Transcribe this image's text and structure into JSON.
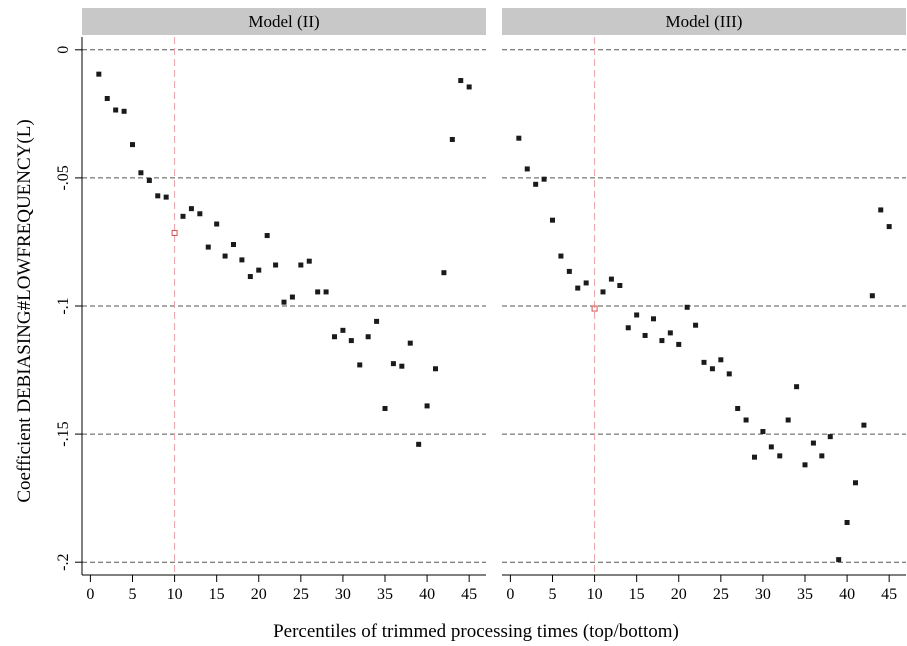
{
  "chart_data": {
    "type": "scatter",
    "ylabel": "Coefficient DEBIASING#LOWFREQUENCY(L)",
    "xlabel": "Percentiles of trimmed processing times (top/bottom)",
    "xlim": [
      -1,
      47
    ],
    "ylim": [
      -0.205,
      0.005
    ],
    "xticks": [
      0,
      5,
      10,
      15,
      20,
      25,
      30,
      35,
      40,
      45
    ],
    "yticks": [
      0,
      -0.05,
      -0.1,
      -0.15,
      -0.2
    ],
    "ytick_labels": [
      "0",
      "-.05",
      "-.1",
      "-.15",
      "-.2"
    ],
    "reference_x": 10,
    "grid": "dashed horizontal at y ticks",
    "colors": {
      "point": "#1a1a1a",
      "highlight": "#d9534f",
      "reference_line": "#e8a0a8",
      "strip": "#c8c8c8",
      "grid": "#555555"
    },
    "panels": [
      {
        "title": "Model (II)",
        "x": [
          1,
          2,
          3,
          4,
          5,
          6,
          7,
          8,
          9,
          10,
          11,
          12,
          13,
          14,
          15,
          16,
          17,
          18,
          19,
          20,
          21,
          22,
          23,
          24,
          25,
          26,
          27,
          28,
          29,
          30,
          31,
          32,
          33,
          34,
          35,
          36,
          37,
          38,
          39,
          40,
          41,
          42,
          43,
          44,
          45
        ],
        "y": [
          -0.0095,
          -0.019,
          -0.0235,
          -0.024,
          -0.037,
          -0.048,
          -0.051,
          -0.057,
          -0.0575,
          -0.0715,
          -0.065,
          -0.062,
          -0.064,
          -0.077,
          -0.068,
          -0.0805,
          -0.076,
          -0.082,
          -0.0885,
          -0.086,
          -0.0725,
          -0.084,
          -0.0985,
          -0.0965,
          -0.084,
          -0.0825,
          -0.0945,
          -0.0945,
          -0.112,
          -0.1095,
          -0.1135,
          -0.123,
          -0.112,
          -0.106,
          -0.14,
          -0.1225,
          -0.1235,
          -0.1145,
          -0.154,
          -0.139,
          -0.1245,
          -0.087,
          -0.035,
          -0.012,
          -0.0145
        ]
      },
      {
        "title": "Model (III)",
        "x": [
          1,
          2,
          3,
          4,
          5,
          6,
          7,
          8,
          9,
          10,
          11,
          12,
          13,
          14,
          15,
          16,
          17,
          18,
          19,
          20,
          21,
          22,
          23,
          24,
          25,
          26,
          27,
          28,
          29,
          30,
          31,
          32,
          33,
          34,
          35,
          36,
          37,
          38,
          39,
          40,
          41,
          42,
          43,
          44,
          45
        ],
        "y": [
          -0.0345,
          -0.0465,
          -0.0525,
          -0.0505,
          -0.0665,
          -0.0805,
          -0.0865,
          -0.093,
          -0.091,
          -0.101,
          -0.0945,
          -0.0895,
          -0.092,
          -0.1085,
          -0.1035,
          -0.1115,
          -0.105,
          -0.1135,
          -0.1105,
          -0.115,
          -0.1005,
          -0.1075,
          -0.122,
          -0.1245,
          -0.121,
          -0.1265,
          -0.14,
          -0.1445,
          -0.159,
          -0.149,
          -0.155,
          -0.1585,
          -0.1445,
          -0.1315,
          -0.162,
          -0.1535,
          -0.1585,
          -0.151,
          -0.199,
          -0.1845,
          -0.169,
          -0.1465,
          -0.096,
          -0.0625,
          -0.069
        ]
      }
    ],
    "highlighted_x": 10
  }
}
